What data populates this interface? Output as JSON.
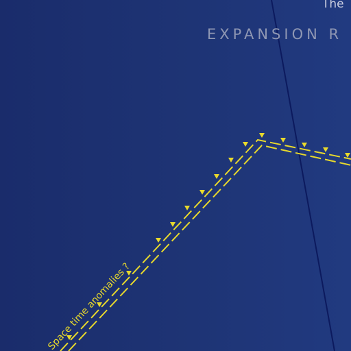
{
  "labels": {
    "corner_text": "The",
    "heading": "EXPANSION R",
    "annotation": "Space time anomalies ?"
  },
  "colors": {
    "background_left": "#1a2c6b",
    "background_right": "#213a80",
    "accent_line": "#e8d92c",
    "dark_line": "#0c1a5e",
    "heading_text": "#8f97b3"
  }
}
